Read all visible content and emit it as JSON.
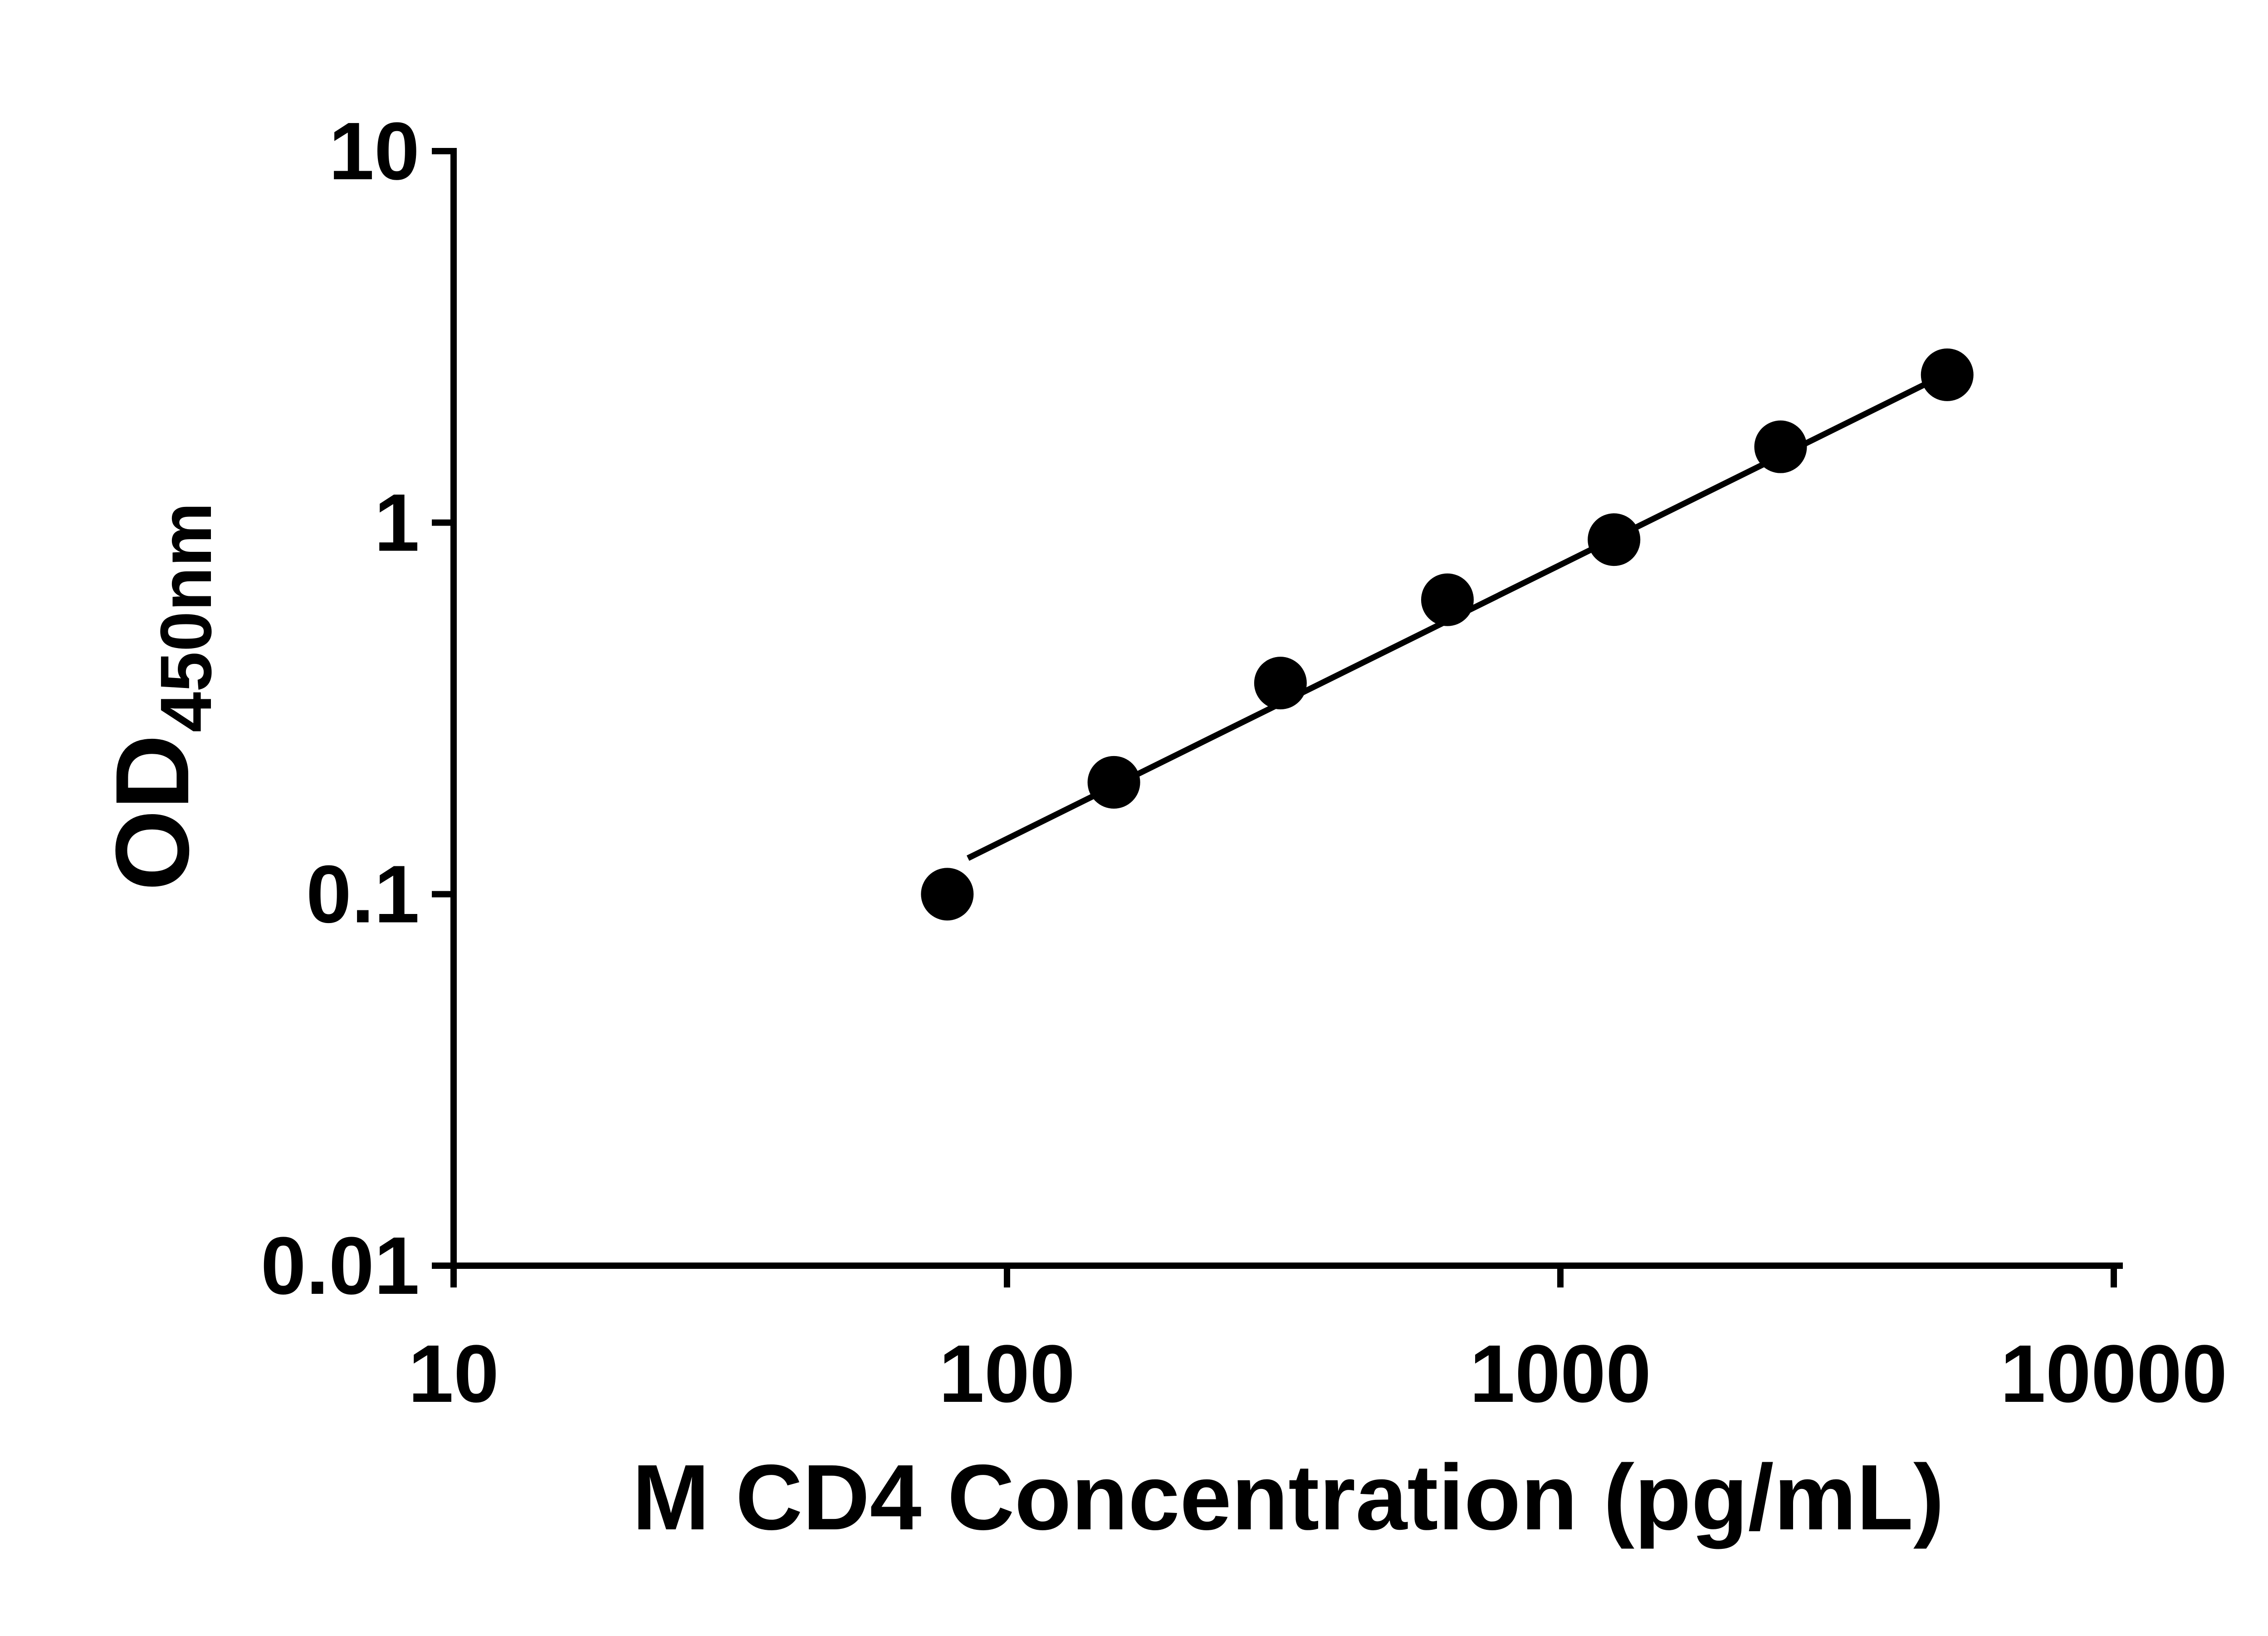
{
  "page": {
    "background": "#ffffff",
    "foreground": "#000000"
  },
  "chart_data": {
    "type": "scatter",
    "xlabel": "M CD4 Concentration (pg/mL)",
    "ylabel": "OD450nm",
    "ylabel_main": "OD",
    "ylabel_sub": "450nm",
    "x_scale": "log",
    "y_scale": "log",
    "xlim": [
      10,
      10000
    ],
    "ylim": [
      0.01,
      10
    ],
    "x_ticks": [
      10,
      100,
      1000,
      10000
    ],
    "x_tick_labels": [
      "10",
      "100",
      "1000",
      "10000"
    ],
    "y_ticks": [
      0.01,
      0.1,
      1,
      10
    ],
    "y_tick_labels": [
      "0.01",
      "0.1",
      "1",
      "10"
    ],
    "grid": false,
    "legend": false,
    "marker": {
      "shape": "circle",
      "color": "#000000"
    },
    "line_color": "#000000",
    "axis_color": "#000000",
    "series": [
      {
        "x": [
          78,
          156,
          312,
          625,
          1250,
          2500,
          5000
        ],
        "y": [
          0.1,
          0.2,
          0.37,
          0.62,
          0.9,
          1.6,
          2.5
        ]
      }
    ],
    "trend_line": {
      "x1": 85,
      "y1": 0.125,
      "x2": 5100,
      "y2": 2.56
    }
  }
}
